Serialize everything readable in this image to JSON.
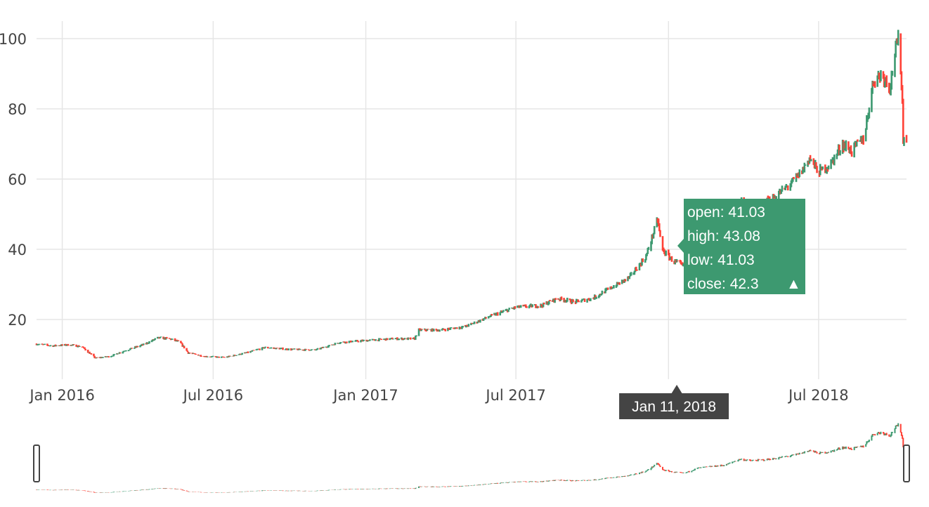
{
  "chart_data": {
    "type": "candlestick",
    "title": "",
    "xlabel": "",
    "ylabel": "",
    "x_range": [
      "2015-12-01",
      "2018-10-15"
    ],
    "ylim": [
      3,
      105
    ],
    "yticks": [
      20,
      40,
      60,
      80,
      100
    ],
    "xticks": [
      {
        "date": "2016-01-01",
        "label": "Jan 2016"
      },
      {
        "date": "2016-07-01",
        "label": "Jul 2016"
      },
      {
        "date": "2017-01-01",
        "label": "Jan 2017"
      },
      {
        "date": "2017-07-01",
        "label": "Jul 2017"
      },
      {
        "date": "2018-07-01",
        "label": "Jul 2018"
      }
    ],
    "grid": true,
    "rangeslider": true,
    "colors": {
      "increasing": "#3d9970",
      "decreasing": "#ff4136",
      "grid": "#e6e6e6",
      "hover_label": "#444444"
    },
    "close_trend": [
      [
        "2015-12-01",
        13
      ],
      [
        "2015-12-20",
        12.5
      ],
      [
        "2016-01-10",
        12.8
      ],
      [
        "2016-01-25",
        12.2
      ],
      [
        "2016-02-10",
        9
      ],
      [
        "2016-02-28",
        9.5
      ],
      [
        "2016-03-15",
        11
      ],
      [
        "2016-04-10",
        13
      ],
      [
        "2016-04-25",
        14.8
      ],
      [
        "2016-05-10",
        14.5
      ],
      [
        "2016-05-22",
        13.5
      ],
      [
        "2016-06-01",
        10.5
      ],
      [
        "2016-06-20",
        9.5
      ],
      [
        "2016-07-15",
        9.2
      ],
      [
        "2016-08-10",
        10.5
      ],
      [
        "2016-09-01",
        12
      ],
      [
        "2016-10-01",
        11.5
      ],
      [
        "2016-11-01",
        11.3
      ],
      [
        "2016-12-01",
        13.5
      ],
      [
        "2017-01-01",
        14
      ],
      [
        "2017-02-01",
        14.5
      ],
      [
        "2017-03-01",
        14.5
      ],
      [
        "2017-03-05",
        17
      ],
      [
        "2017-04-01",
        17
      ],
      [
        "2017-05-01",
        18
      ],
      [
        "2017-06-01",
        21
      ],
      [
        "2017-07-01",
        23.5
      ],
      [
        "2017-08-01",
        24
      ],
      [
        "2017-08-20",
        26
      ],
      [
        "2017-09-10",
        25
      ],
      [
        "2017-10-01",
        26
      ],
      [
        "2017-10-20",
        28.5
      ],
      [
        "2017-11-15",
        32
      ],
      [
        "2017-12-05",
        38
      ],
      [
        "2017-12-19",
        48.5
      ],
      [
        "2017-12-24",
        40
      ],
      [
        "2018-01-05",
        37
      ],
      [
        "2018-01-20",
        35
      ],
      [
        "2018-02-05",
        42
      ],
      [
        "2018-02-20",
        44
      ],
      [
        "2018-03-10",
        46
      ],
      [
        "2018-03-28",
        54
      ],
      [
        "2018-04-10",
        52
      ],
      [
        "2018-04-25",
        53
      ],
      [
        "2018-05-10",
        55
      ],
      [
        "2018-05-30",
        59
      ],
      [
        "2018-06-10",
        62
      ],
      [
        "2018-06-20",
        66
      ],
      [
        "2018-07-01",
        62
      ],
      [
        "2018-07-15",
        64
      ],
      [
        "2018-07-30",
        70
      ],
      [
        "2018-08-10",
        68
      ],
      [
        "2018-08-25",
        72
      ],
      [
        "2018-09-05",
        88
      ],
      [
        "2018-09-15",
        90
      ],
      [
        "2018-09-25",
        86
      ],
      [
        "2018-10-01",
        96
      ],
      [
        "2018-10-05",
        99.5
      ],
      [
        "2018-10-08",
        92
      ],
      [
        "2018-10-10",
        82
      ],
      [
        "2018-10-11",
        70
      ],
      [
        "2018-10-13",
        76
      ],
      [
        "2018-10-15",
        71
      ]
    ],
    "hover": {
      "date": "2018-01-11",
      "date_label": "Jan 11, 2018",
      "open": "open: 41.03",
      "high": "high: 43.08",
      "low": "low: 41.03",
      "close": "close: 42.3",
      "direction_symbol": "▲"
    }
  }
}
